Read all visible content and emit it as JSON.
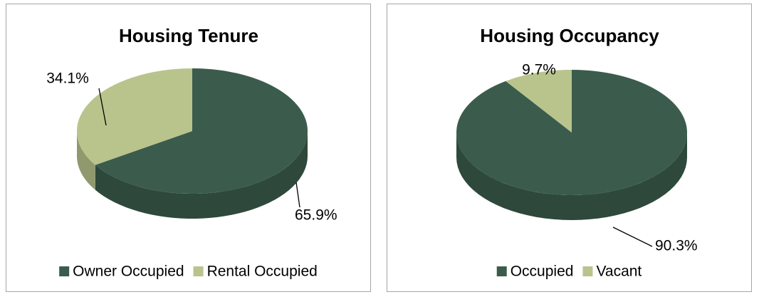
{
  "chart_data": [
    {
      "type": "pie3d",
      "title": "Housing Tenure",
      "categories": [
        "Owner Occupied",
        "Rental Occupied"
      ],
      "values": [
        65.9,
        34.1
      ],
      "value_labels": [
        "65.9%",
        "34.1%"
      ],
      "colors": [
        "#3b5c4d",
        "#b9c48c"
      ],
      "legend": "bottom"
    },
    {
      "type": "pie3d",
      "title": "Housing Occupancy",
      "categories": [
        "Occupied",
        "Vacant"
      ],
      "values": [
        90.3,
        9.7
      ],
      "value_labels": [
        "90.3%",
        "9.7%"
      ],
      "colors": [
        "#3b5c4d",
        "#b9c48c"
      ],
      "legend": "bottom"
    }
  ]
}
